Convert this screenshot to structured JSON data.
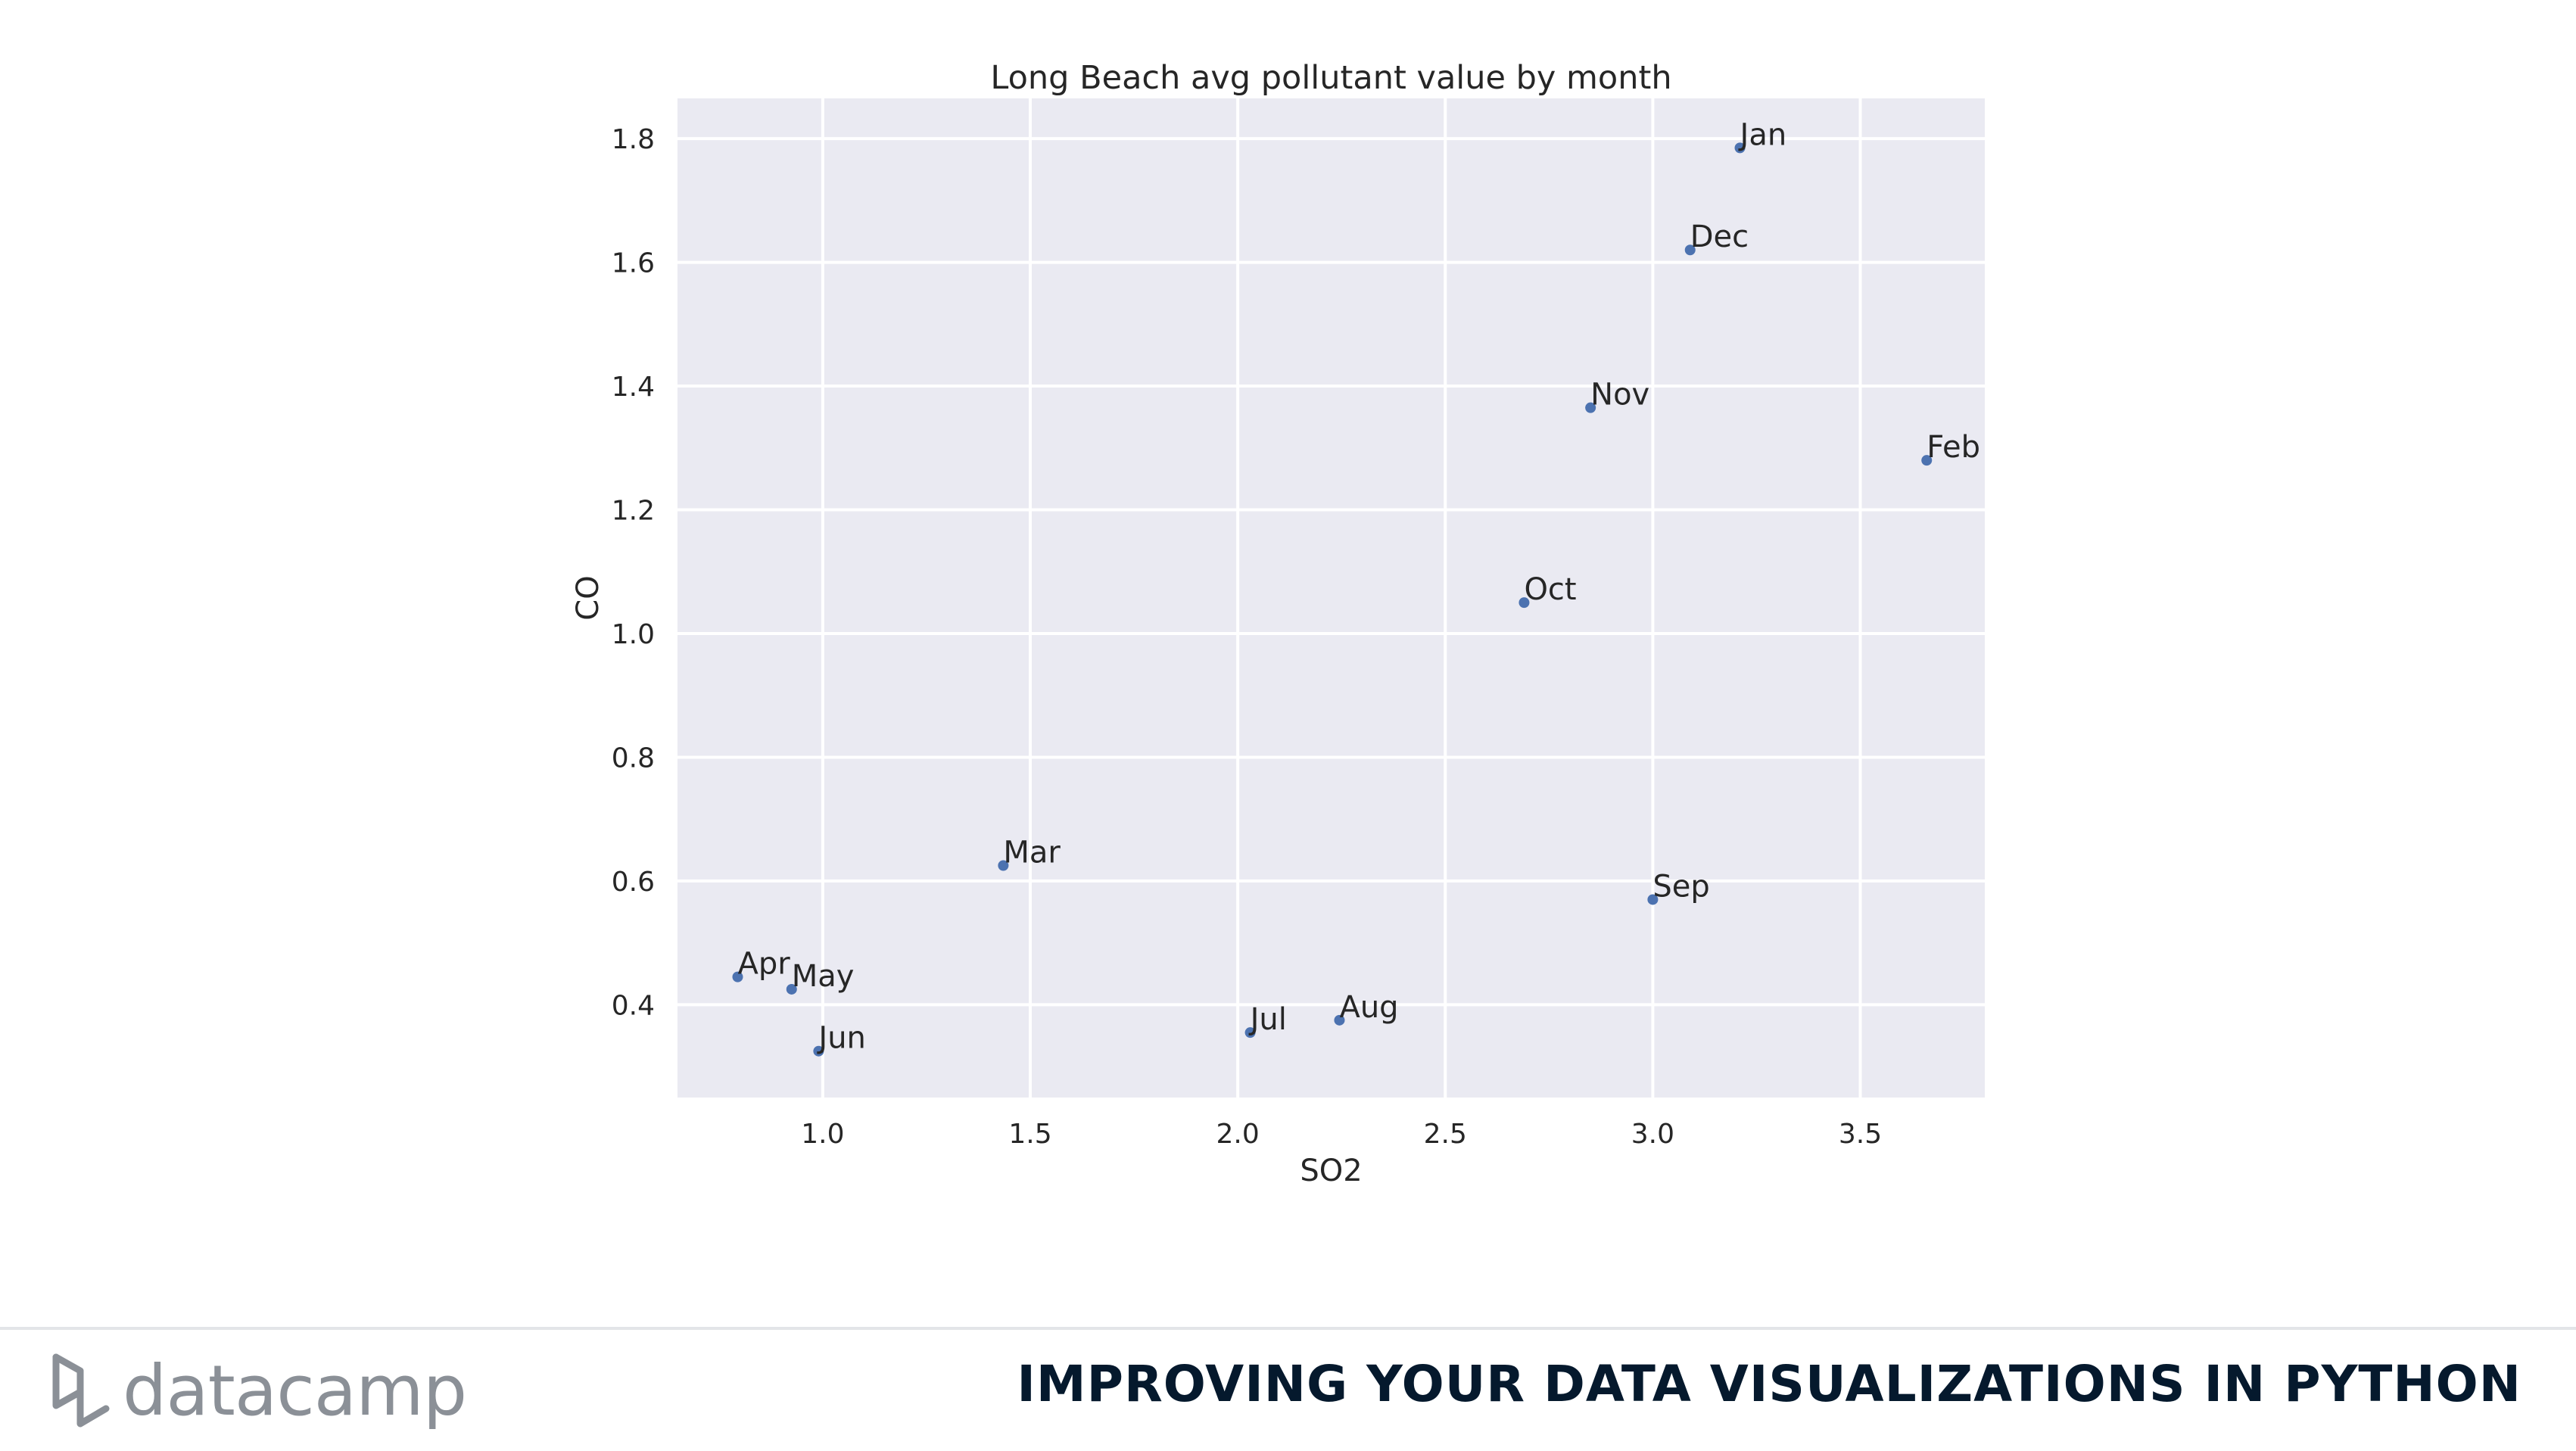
{
  "chart_data": {
    "type": "scatter",
    "title": "Long Beach avg pollutant value by month",
    "xlabel": "SO2",
    "ylabel": "CO",
    "xlim": [
      0.65,
      3.8
    ],
    "ylim": [
      0.25,
      1.865
    ],
    "xticks": [
      1.0,
      1.5,
      2.0,
      2.5,
      3.0,
      3.5
    ],
    "xtick_labels": [
      "1.0",
      "1.5",
      "2.0",
      "2.5",
      "3.0",
      "3.5"
    ],
    "yticks": [
      0.4,
      0.6,
      0.8,
      1.0,
      1.2,
      1.4,
      1.6,
      1.8
    ],
    "ytick_labels": [
      "0.4",
      "0.6",
      "0.8",
      "1.0",
      "1.2",
      "1.4",
      "1.6",
      "1.8"
    ],
    "grid": true,
    "points": [
      {
        "label": "Jan",
        "x": 3.21,
        "y": 1.785
      },
      {
        "label": "Feb",
        "x": 3.66,
        "y": 1.28
      },
      {
        "label": "Mar",
        "x": 1.435,
        "y": 0.625
      },
      {
        "label": "Apr",
        "x": 0.795,
        "y": 0.445
      },
      {
        "label": "May",
        "x": 0.925,
        "y": 0.425
      },
      {
        "label": "Jun",
        "x": 0.99,
        "y": 0.325
      },
      {
        "label": "Jul",
        "x": 2.03,
        "y": 0.355
      },
      {
        "label": "Aug",
        "x": 2.245,
        "y": 0.375
      },
      {
        "label": "Sep",
        "x": 3.0,
        "y": 0.57
      },
      {
        "label": "Oct",
        "x": 2.69,
        "y": 1.05
      },
      {
        "label": "Nov",
        "x": 2.85,
        "y": 1.365
      },
      {
        "label": "Dec",
        "x": 3.09,
        "y": 1.62
      }
    ],
    "colors": {
      "background": "#eaeaf2",
      "grid": "#ffffff",
      "point": "#4c72b0",
      "text": "#262626"
    }
  },
  "footer": {
    "logo_text": "datacamp",
    "logo_icon": "datacamp-logo-icon",
    "course_title": "IMPROVING YOUR DATA VISUALIZATIONS IN PYTHON"
  }
}
